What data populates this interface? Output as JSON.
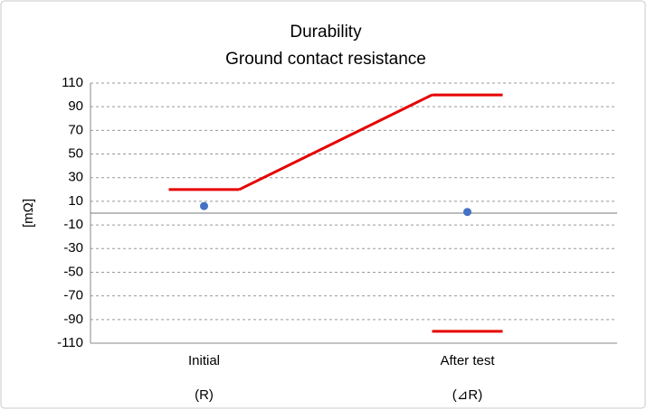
{
  "chart_data": {
    "type": "limit-dot",
    "title": "Durability",
    "subtitle": "Ground contact resistance",
    "ylabel": "[mΩ]",
    "categories": [
      "Initial",
      "After test"
    ],
    "category_notes": [
      "(R)",
      "(⊿R)"
    ],
    "ylim": [
      -110,
      110
    ],
    "yticks": [
      110,
      90,
      70,
      50,
      30,
      10,
      -10,
      -30,
      -50,
      -70,
      -90,
      -110
    ],
    "grid": true,
    "series": [
      {
        "kind": "point",
        "color": "#4472c4",
        "values": [
          6,
          1
        ]
      },
      {
        "kind": "limit",
        "color": "#e60000",
        "values": [
          20,
          100
        ]
      },
      {
        "kind": "limit",
        "color": "#e60000",
        "values": [
          null,
          -100
        ]
      }
    ]
  }
}
